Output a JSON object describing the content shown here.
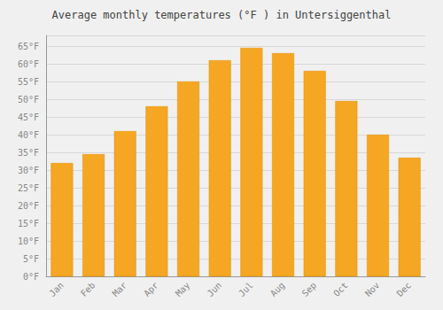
{
  "chart_data": {
    "type": "bar",
    "title": "Average monthly temperatures (°F ) in Untersiggenthal",
    "categories": [
      "Jan",
      "Feb",
      "Mar",
      "Apr",
      "May",
      "Jun",
      "Jul",
      "Aug",
      "Sep",
      "Oct",
      "Nov",
      "Dec"
    ],
    "values": [
      32,
      34.5,
      41,
      48,
      55,
      61,
      64.5,
      63,
      58,
      49.5,
      40,
      33.5
    ],
    "color": "#F5A623",
    "ylim": [
      0,
      68
    ],
    "yticks": [
      {
        "value": 0,
        "label": "0°F"
      },
      {
        "value": 5,
        "label": "5°F"
      },
      {
        "value": 10,
        "label": "10°F"
      },
      {
        "value": 15,
        "label": "15°F"
      },
      {
        "value": 20,
        "label": "20°F"
      },
      {
        "value": 25,
        "label": "25°F"
      },
      {
        "value": 30,
        "label": "30°F"
      },
      {
        "value": 35,
        "label": "35°F"
      },
      {
        "value": 40,
        "label": "40°F"
      },
      {
        "value": 45,
        "label": "45°F"
      },
      {
        "value": 50,
        "label": "50°F"
      },
      {
        "value": 55,
        "label": "55°F"
      },
      {
        "value": 60,
        "label": "60°F"
      },
      {
        "value": 65,
        "label": "65°F"
      }
    ],
    "grid": true
  }
}
